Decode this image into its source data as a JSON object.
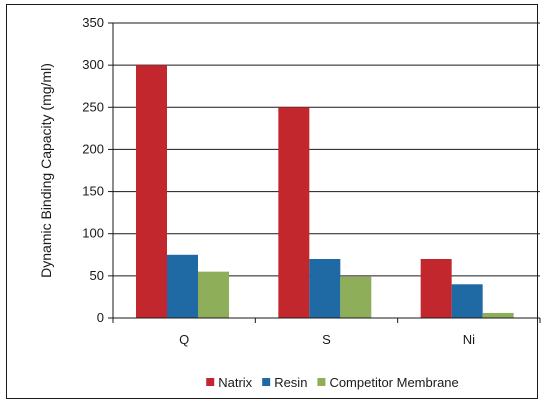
{
  "chart_data": {
    "type": "bar",
    "title": "",
    "xlabel": "",
    "ylabel": "Dynamic Binding Capacity (mg/ml)",
    "categories": [
      "Q",
      "S",
      "Ni"
    ],
    "series": [
      {
        "name": "Natrix",
        "color": "#c1272d",
        "values": [
          300,
          250,
          70
        ]
      },
      {
        "name": "Resin",
        "color": "#1f6aa5",
        "values": [
          75,
          70,
          40
        ]
      },
      {
        "name": "Competitor Membrane",
        "color": "#8fae5a",
        "values": [
          55,
          49,
          6
        ]
      }
    ],
    "ylim": [
      0,
      350
    ],
    "yticks": [
      "0",
      "50",
      "100",
      "150",
      "200",
      "250",
      "300",
      "350"
    ],
    "grid": true,
    "legend_position": "bottom"
  }
}
